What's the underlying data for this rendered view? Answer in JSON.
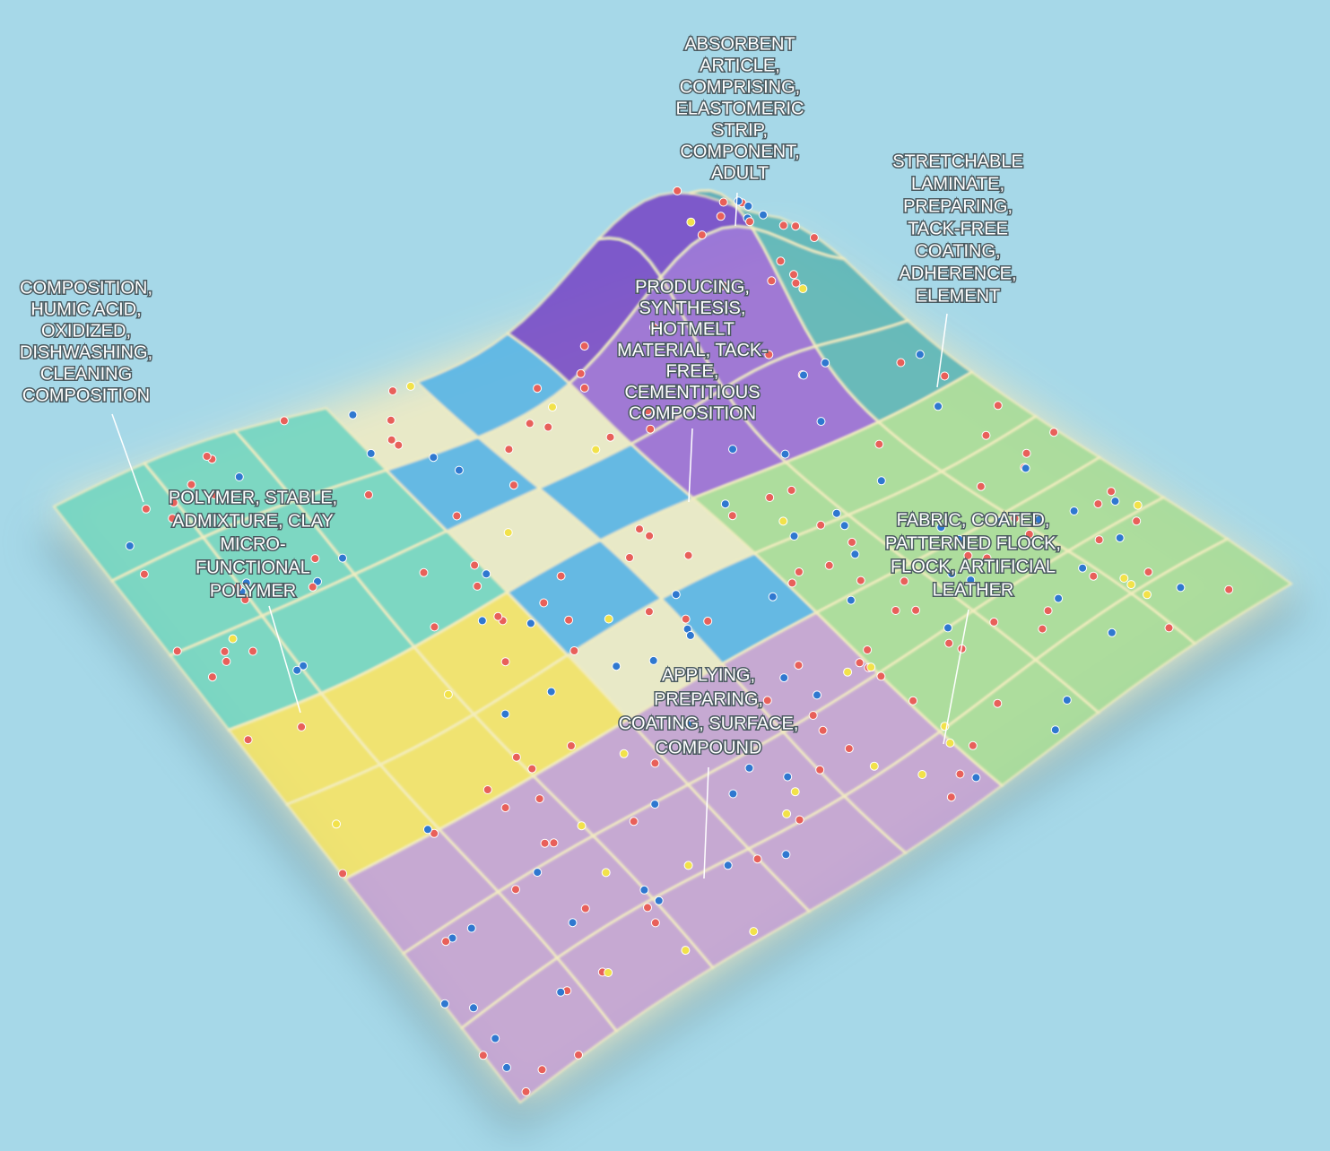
{
  "labels": [
    {
      "lines": [
        "ABSORBENT",
        "ARTICLE,",
        "COMPRISING,",
        "ELASTOMERIC",
        "STRIP,",
        "COMPONENT,",
        "ADULT"
      ]
    },
    {
      "lines": [
        "STRETCHABLE",
        "LAMINATE,",
        "PREPARING,",
        "TACK-FREE",
        "COATING,",
        "ADHERENCE,",
        "ELEMENT"
      ]
    },
    {
      "lines": [
        "COMPOSITION,",
        "HUMIC ACID,",
        "OXIDIZED,",
        "DISHWASHING,",
        "CLEANING",
        "COMPOSITION"
      ]
    },
    {
      "lines": [
        "PRODUCING,",
        "SYNTHESIS,",
        "HOTMELT",
        "MATERIAL, TACK-",
        "FREE,",
        "CEMENTITIOUS",
        "COMPOSITION"
      ]
    },
    {
      "lines": [
        "POLYMER, STABLE,",
        "ADMIXTURE, CLAY",
        "MICRO-",
        "FUNCTIONAL",
        "POLYMER"
      ]
    },
    {
      "lines": [
        "FABRIC, COATED,",
        "PATTERNED FLOCK,",
        "FLOCK, ARTIFICIAL",
        "LEATHER"
      ]
    },
    {
      "lines": [
        "APPLYING,",
        "PREPARING,",
        "COATING, SURFACE,",
        "COMPOUND"
      ]
    }
  ]
}
